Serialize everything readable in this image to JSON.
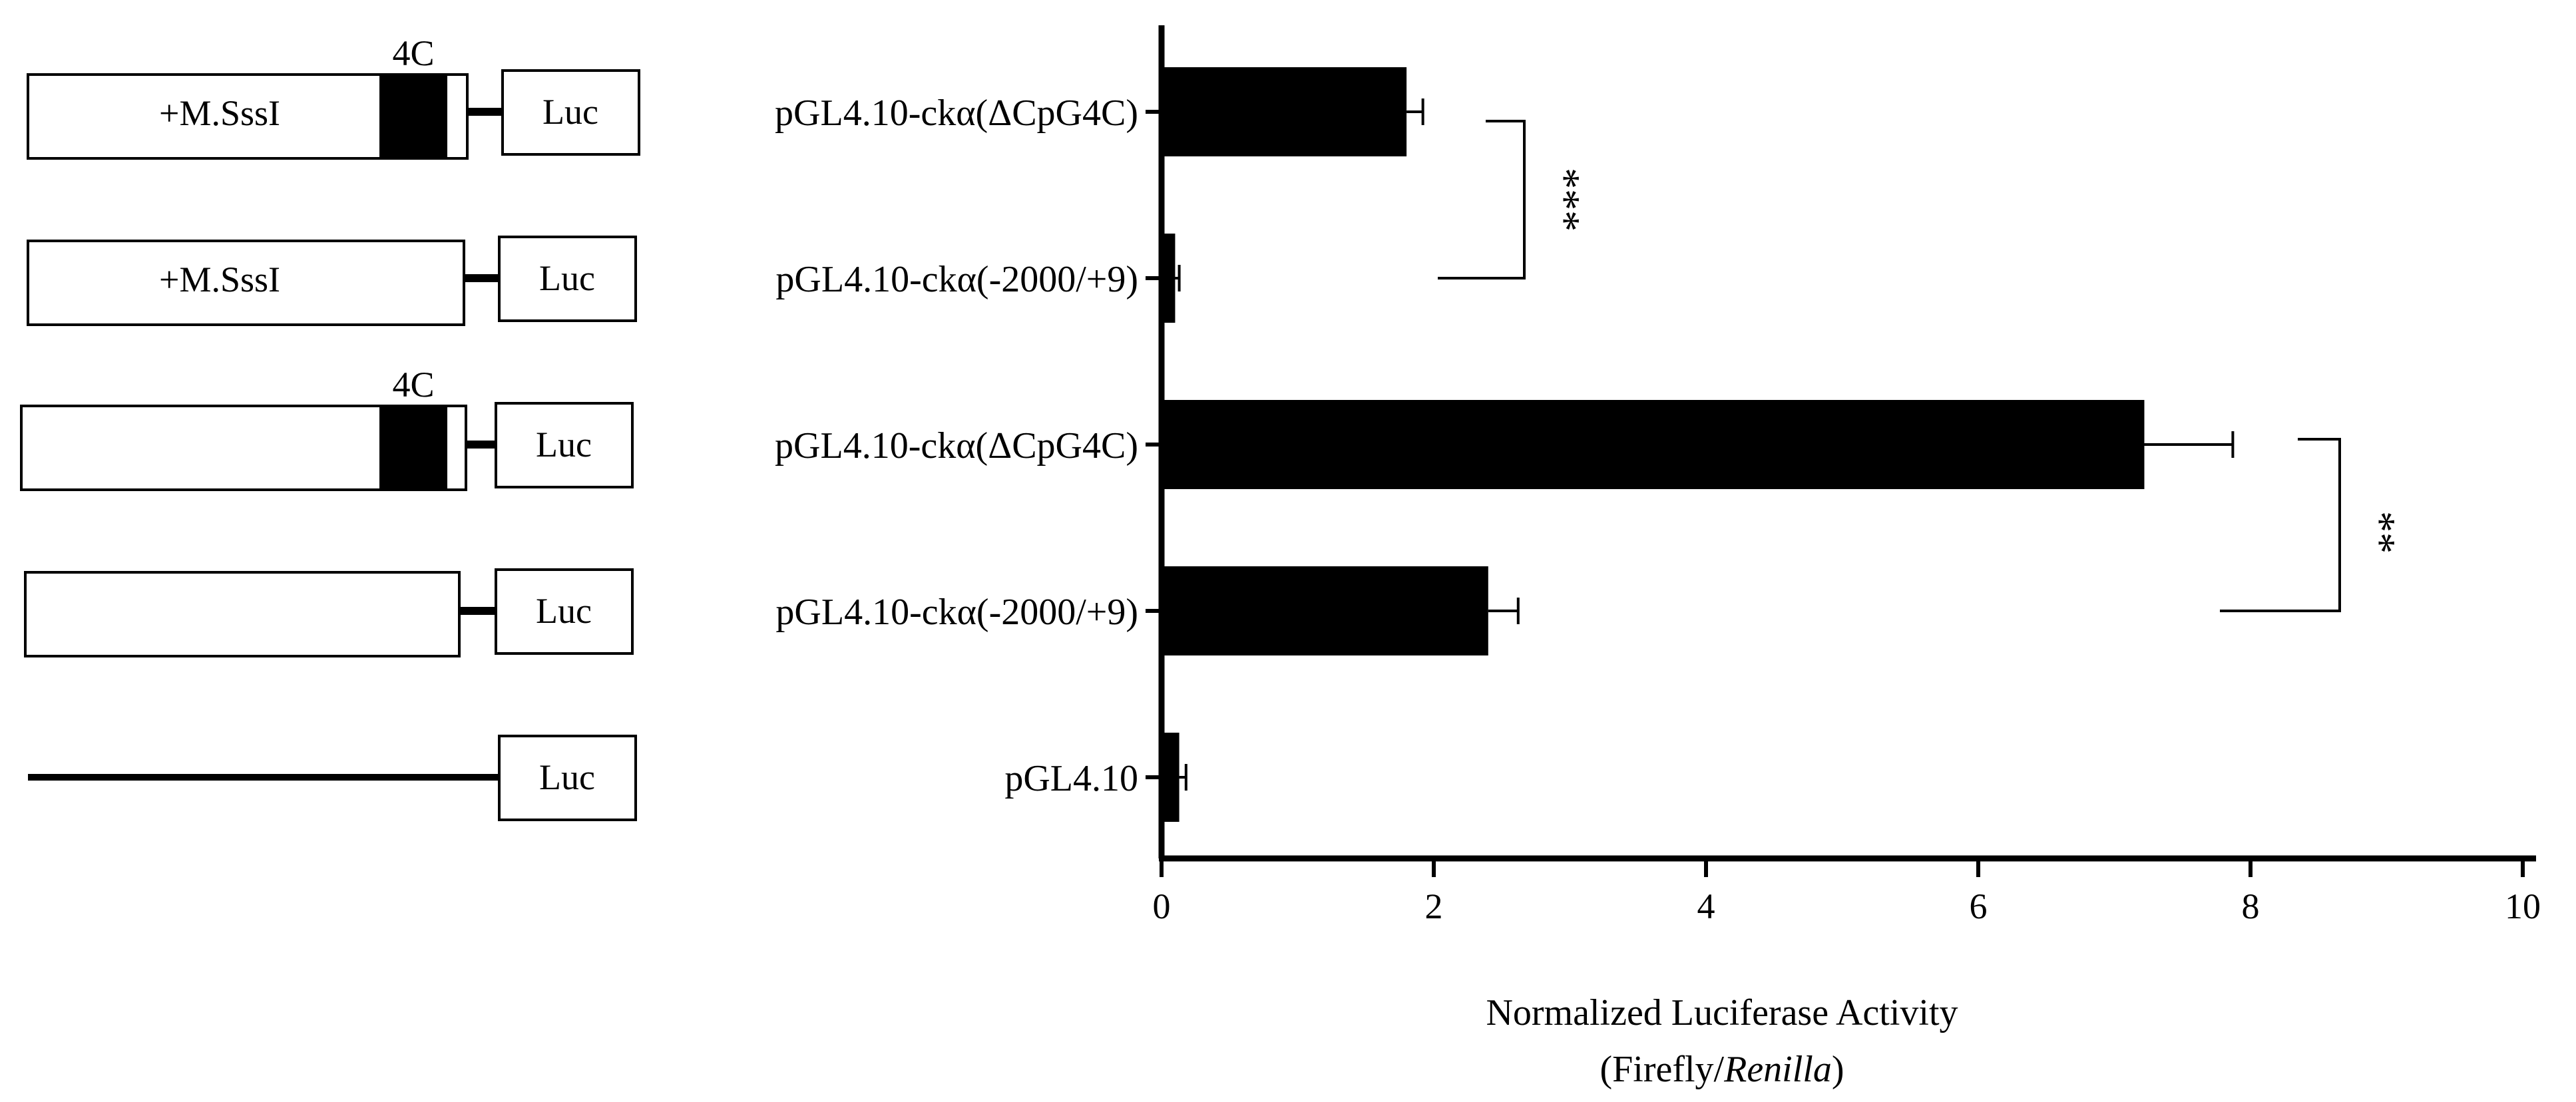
{
  "colors": {
    "ink": "#000000",
    "paper": "#ffffff"
  },
  "constructs": [
    {
      "label": "pGL4.10-ckα(ΔCpG4C)",
      "box_text": "+M.SssI",
      "has_insert": true,
      "insert_label": "4C",
      "reporter": "Luc"
    },
    {
      "label": "pGL4.10-ckα(-2000/+9)",
      "box_text": "+M.SssI",
      "has_insert": false,
      "insert_label": "",
      "reporter": "Luc"
    },
    {
      "label": "pGL4.10-ckα(ΔCpG4C)",
      "box_text": "",
      "has_insert": true,
      "insert_label": "4C",
      "reporter": "Luc"
    },
    {
      "label": "pGL4.10-ckα(-2000/+9)",
      "box_text": "",
      "has_insert": false,
      "insert_label": "",
      "reporter": "Luc"
    },
    {
      "label": "pGL4.10",
      "box_text": "",
      "has_insert": false,
      "insert_label": "",
      "reporter": "Luc",
      "vector_only": true
    }
  ],
  "chart_data": {
    "type": "bar",
    "orientation": "horizontal",
    "categories": [
      "pGL4.10-ckα(ΔCpG4C)",
      "pGL4.10-ckα(-2000/+9)",
      "pGL4.10-ckα(ΔCpG4C)",
      "pGL4.10-ckα(-2000/+9)",
      "pGL4.10"
    ],
    "values": [
      1.8,
      0.1,
      7.22,
      2.4,
      0.13
    ],
    "errors": [
      0.12,
      0.03,
      0.65,
      0.22,
      0.05
    ],
    "xlabel_line1": "Normalized Luciferase Activity",
    "xlabel_prefix": "(Firefly/",
    "xlabel_italic": "Renilla",
    "xlabel_suffix": ")",
    "xlim": [
      0,
      10
    ],
    "xticks": [
      "0",
      "2",
      "4",
      "6",
      "8",
      "10"
    ],
    "grid": false,
    "significance": [
      {
        "rows": [
          0,
          1
        ],
        "label": "***"
      },
      {
        "rows": [
          2,
          3
        ],
        "label": "**"
      }
    ]
  }
}
